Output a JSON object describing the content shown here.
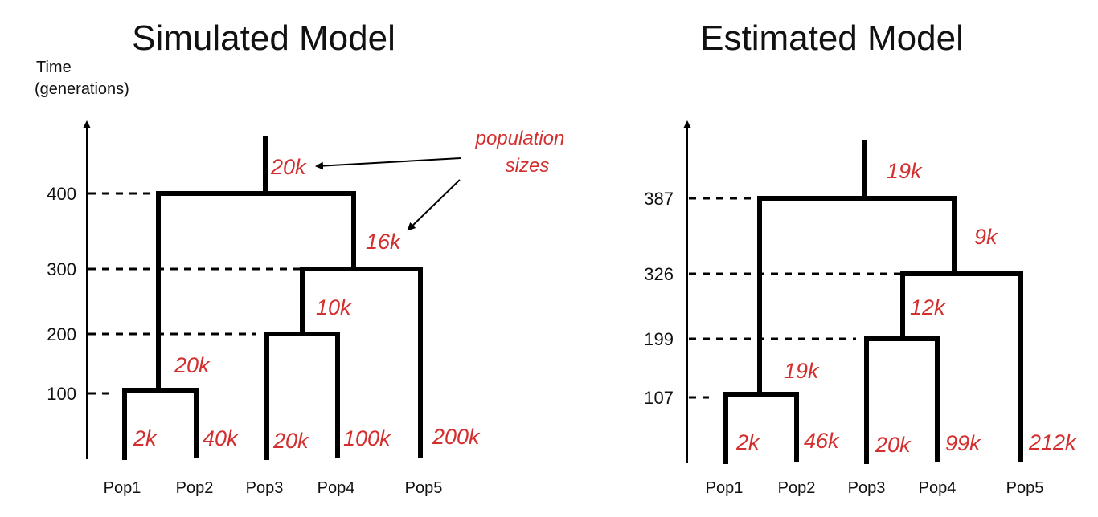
{
  "colors": {
    "size_label": "#d32f2f",
    "lines": "#000000"
  },
  "axis": {
    "label_line1": "Time",
    "label_line2": "(generations)"
  },
  "annotation": {
    "line1": "population",
    "line2": "sizes"
  },
  "panels": [
    {
      "title": "Simulated Model",
      "ticks": [
        "400",
        "300",
        "200",
        "100"
      ],
      "populations": [
        "Pop1",
        "Pop2",
        "Pop3",
        "Pop4",
        "Pop5"
      ],
      "sizes": {
        "root": "20k",
        "anc_12345_right": "16k",
        "anc_34": "10k",
        "anc_12": "20k",
        "pop1": "2k",
        "pop2": "40k",
        "pop3": "20k",
        "pop4": "100k",
        "pop5": "200k"
      }
    },
    {
      "title": "Estimated Model",
      "ticks": [
        "387",
        "326",
        "199",
        "107"
      ],
      "populations": [
        "Pop1",
        "Pop2",
        "Pop3",
        "Pop4",
        "Pop5"
      ],
      "sizes": {
        "root": "19k",
        "anc_12345_right": "9k",
        "anc_34": "12k",
        "anc_12": "19k",
        "pop1": "2k",
        "pop2": "46k",
        "pop3": "20k",
        "pop4": "99k",
        "pop5": "212k"
      }
    }
  ]
}
